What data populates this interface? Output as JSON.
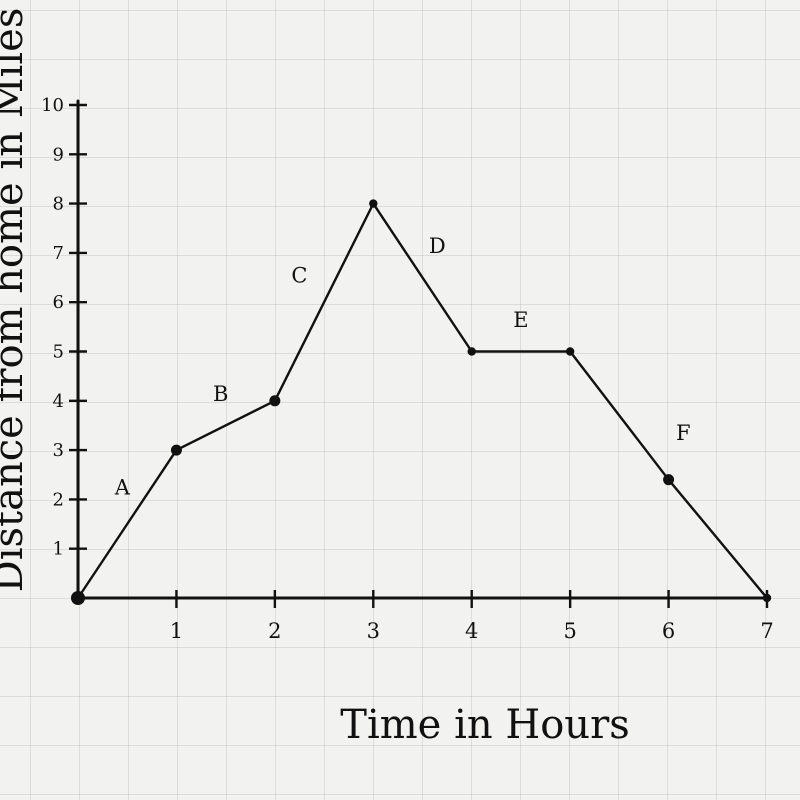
{
  "chart_data": {
    "type": "line",
    "title": "",
    "xlabel": "Time in Hours",
    "ylabel": "Distance from home in Miles",
    "xlim": [
      0,
      7
    ],
    "ylim": [
      0,
      10
    ],
    "x_ticks": [
      "1",
      "2",
      "3",
      "4",
      "5",
      "6",
      "7"
    ],
    "y_ticks": [
      "1",
      "2",
      "3",
      "4",
      "5",
      "6",
      "7",
      "8",
      "9",
      "10"
    ],
    "x": [
      0,
      1,
      2,
      3,
      4,
      5,
      6,
      7
    ],
    "y": [
      0,
      3,
      4,
      8,
      5,
      5,
      2.4,
      0
    ],
    "segment_labels": [
      {
        "text": "A",
        "x": 0.45,
        "y": 2.1
      },
      {
        "text": "B",
        "x": 1.45,
        "y": 4.0
      },
      {
        "text": "C",
        "x": 2.25,
        "y": 6.4
      },
      {
        "text": "D",
        "x": 3.65,
        "y": 7.0
      },
      {
        "text": "E",
        "x": 4.5,
        "y": 5.5
      },
      {
        "text": "F",
        "x": 6.15,
        "y": 3.2
      }
    ],
    "grid": true,
    "line_color": "#111111",
    "grid_color": "#a0a0a0"
  }
}
